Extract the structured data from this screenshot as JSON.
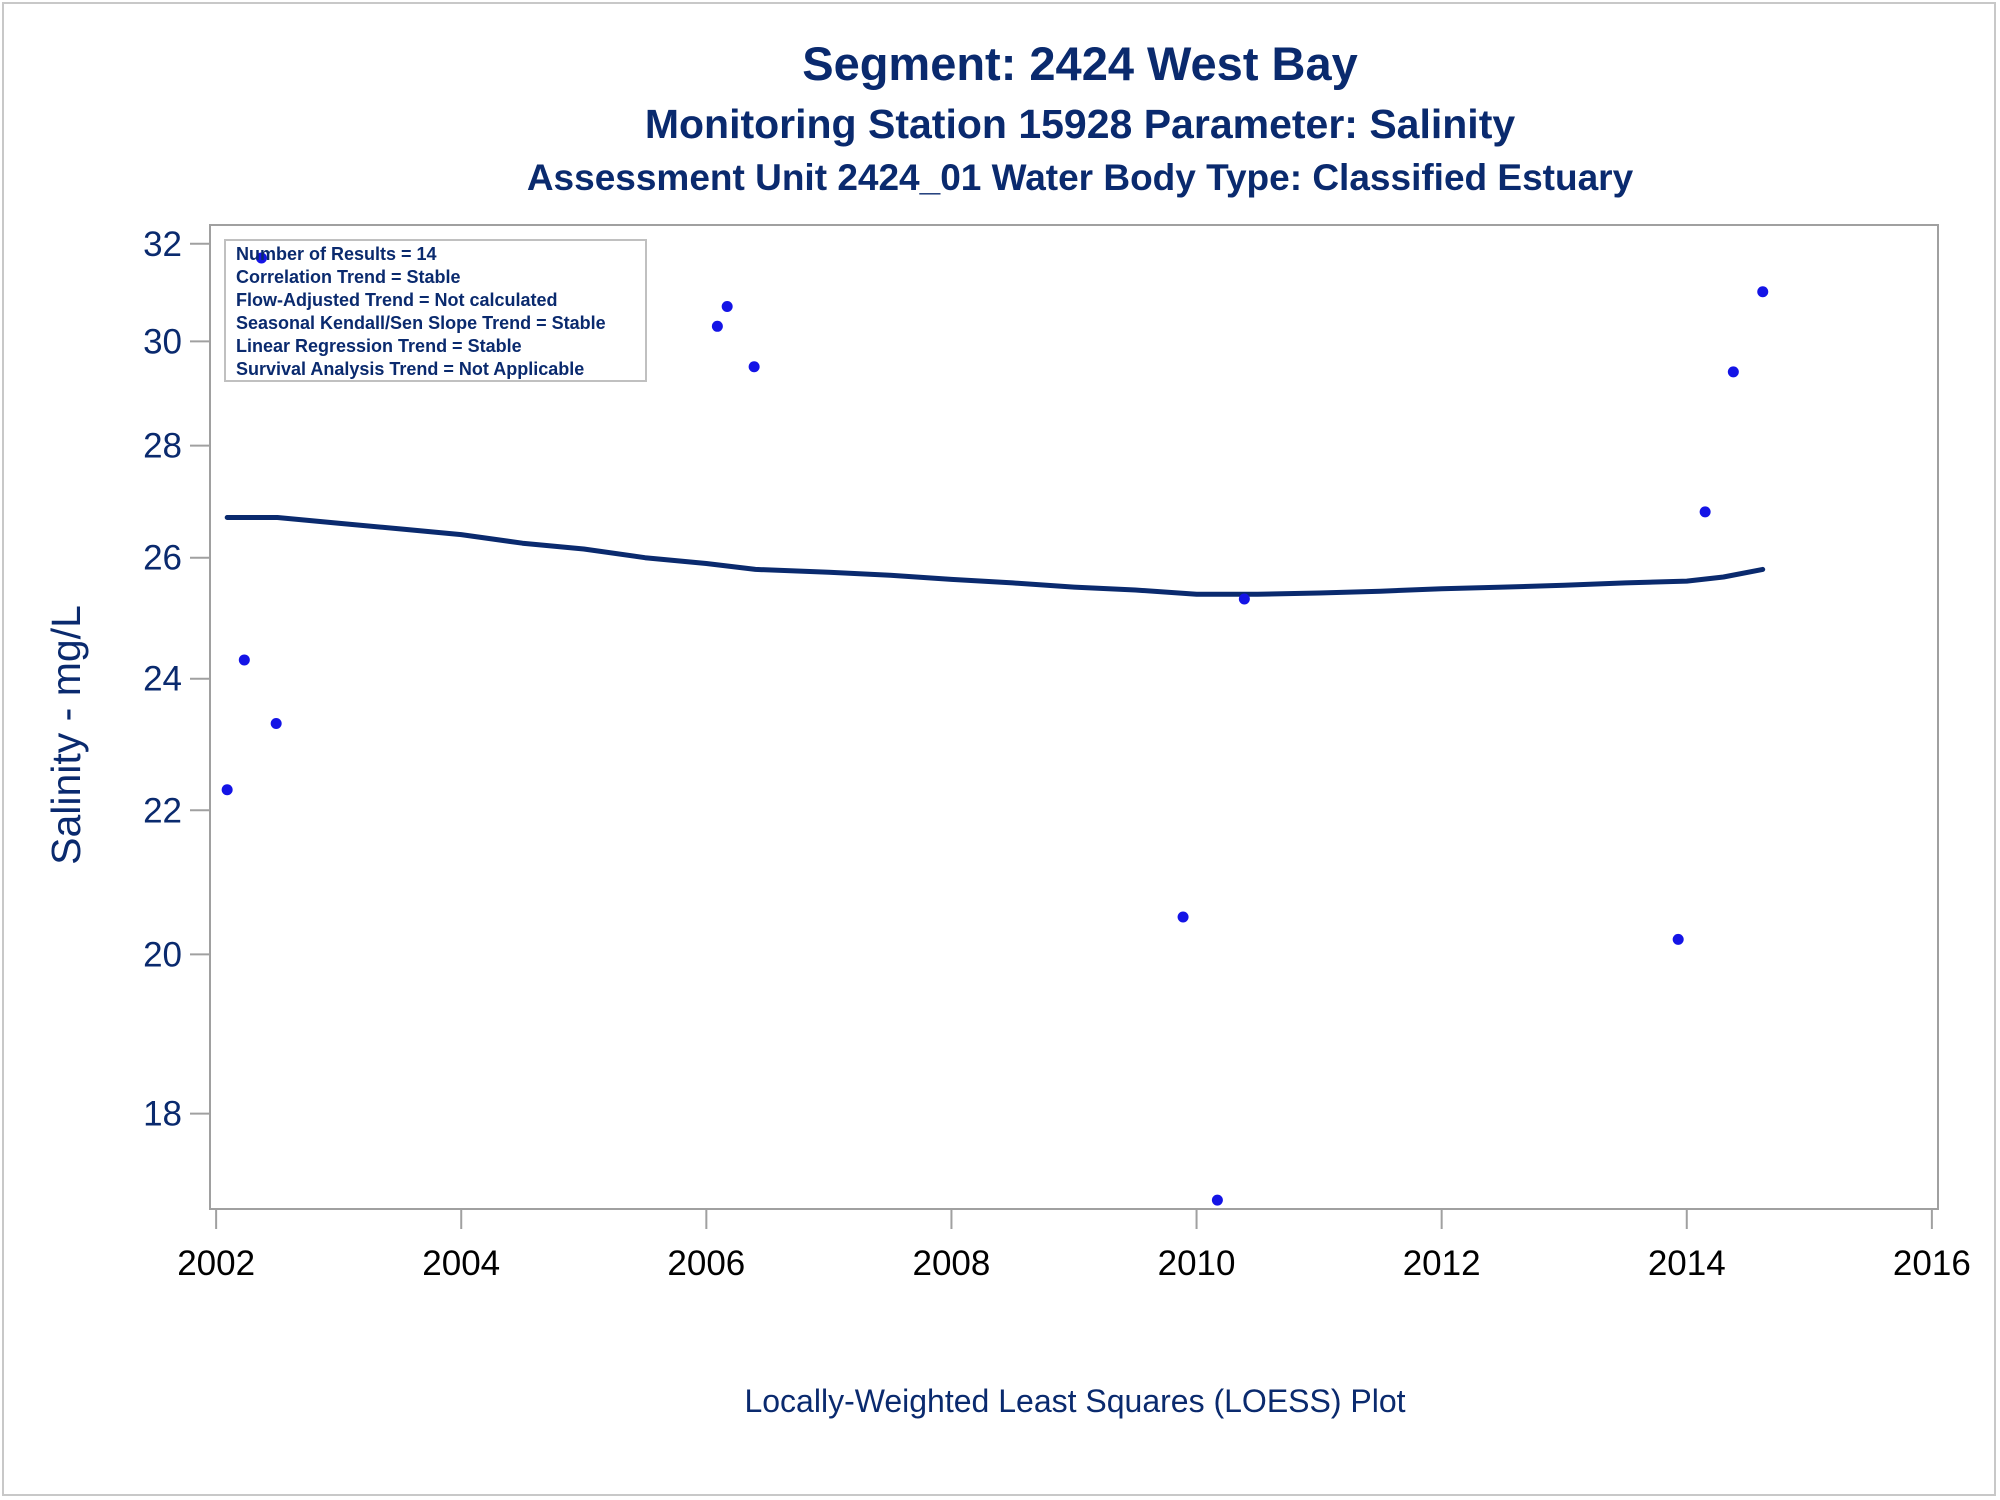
{
  "titles": {
    "line1": "Segment: 2424  West Bay",
    "line2": "Monitoring Station 15928 Parameter: Salinity",
    "line3": "Assessment Unit 2424_01   Water Body Type: Classified Estuary"
  },
  "footnote": "Locally-Weighted Least Squares (LOESS) Plot",
  "stats_box": [
    "Number of Results = 14",
    "Correlation Trend = Stable",
    "Flow-Adjusted Trend = Not calculated",
    "Seasonal Kendall/Sen Slope Trend = Stable",
    "Linear Regression Trend = Stable",
    "Survival Analysis Trend = Not Applicable"
  ],
  "colors": {
    "text": "#0a2a6e",
    "points": "#1414e6",
    "loess_line": "#0a2a6e",
    "axis": "#a0a0a0"
  },
  "chart_data": {
    "type": "scatter",
    "ylabel": "Salinity - mg/L",
    "xlabel": "",
    "yscale": "log",
    "xlim": [
      2001.95,
      2016.05
    ],
    "ylim": [
      16.9,
      32.4
    ],
    "xticks": [
      2002,
      2004,
      2006,
      2008,
      2010,
      2012,
      2014,
      2016
    ],
    "yticks": [
      18,
      20,
      22,
      24,
      26,
      28,
      30,
      32
    ],
    "grid": false,
    "series": [
      {
        "name": "",
        "kind": "points",
        "points": [
          {
            "x": 2002.09,
            "y": 22.3
          },
          {
            "x": 2002.23,
            "y": 24.3
          },
          {
            "x": 2002.37,
            "y": 31.7
          },
          {
            "x": 2002.49,
            "y": 23.3
          },
          {
            "x": 2006.09,
            "y": 30.3
          },
          {
            "x": 2006.17,
            "y": 30.7
          },
          {
            "x": 2006.39,
            "y": 29.5
          },
          {
            "x": 2009.89,
            "y": 20.5
          },
          {
            "x": 2010.17,
            "y": 17.0
          },
          {
            "x": 2010.39,
            "y": 25.3
          },
          {
            "x": 2013.93,
            "y": 20.2
          },
          {
            "x": 2014.15,
            "y": 26.8
          },
          {
            "x": 2014.38,
            "y": 29.4
          },
          {
            "x": 2014.62,
            "y": 31.0
          }
        ]
      },
      {
        "name": "",
        "kind": "loess",
        "points": [
          {
            "x": 2002.09,
            "y": 26.7
          },
          {
            "x": 2002.5,
            "y": 26.7
          },
          {
            "x": 2003.0,
            "y": 26.6
          },
          {
            "x": 2003.5,
            "y": 26.5
          },
          {
            "x": 2004.0,
            "y": 26.4
          },
          {
            "x": 2004.5,
            "y": 26.25
          },
          {
            "x": 2005.0,
            "y": 26.15
          },
          {
            "x": 2005.5,
            "y": 26.0
          },
          {
            "x": 2006.0,
            "y": 25.9
          },
          {
            "x": 2006.4,
            "y": 25.8
          },
          {
            "x": 2007.0,
            "y": 25.75
          },
          {
            "x": 2007.5,
            "y": 25.7
          },
          {
            "x": 2008.0,
            "y": 25.63
          },
          {
            "x": 2008.5,
            "y": 25.57
          },
          {
            "x": 2009.0,
            "y": 25.5
          },
          {
            "x": 2009.5,
            "y": 25.45
          },
          {
            "x": 2010.0,
            "y": 25.38
          },
          {
            "x": 2010.5,
            "y": 25.38
          },
          {
            "x": 2011.0,
            "y": 25.4
          },
          {
            "x": 2011.5,
            "y": 25.43
          },
          {
            "x": 2012.0,
            "y": 25.47
          },
          {
            "x": 2012.5,
            "y": 25.5
          },
          {
            "x": 2013.0,
            "y": 25.53
          },
          {
            "x": 2013.5,
            "y": 25.57
          },
          {
            "x": 2014.0,
            "y": 25.6
          },
          {
            "x": 2014.3,
            "y": 25.67
          },
          {
            "x": 2014.62,
            "y": 25.8
          }
        ]
      }
    ]
  }
}
